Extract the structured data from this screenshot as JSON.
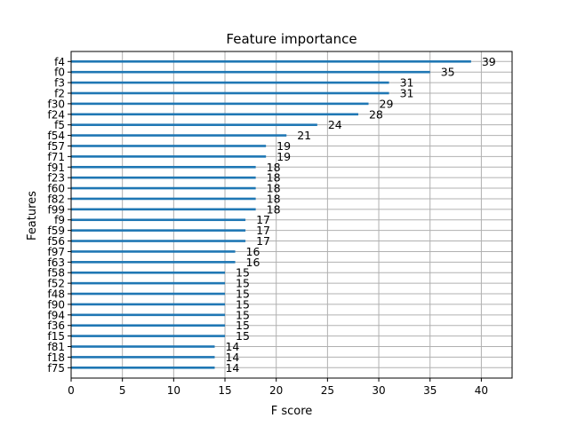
{
  "chart_data": {
    "type": "bar",
    "orientation": "horizontal",
    "title": "Feature importance",
    "xlabel": "F score",
    "ylabel": "Features",
    "xlim": [
      0,
      43
    ],
    "xticks": [
      0,
      5,
      10,
      15,
      20,
      25,
      30,
      35,
      40
    ],
    "grid": true,
    "bar_color": "#1f77b4",
    "categories": [
      "f4",
      "f0",
      "f3",
      "f2",
      "f30",
      "f24",
      "f5",
      "f54",
      "f57",
      "f71",
      "f91",
      "f23",
      "f60",
      "f82",
      "f99",
      "f9",
      "f59",
      "f56",
      "f97",
      "f63",
      "f58",
      "f52",
      "f48",
      "f90",
      "f94",
      "f36",
      "f15",
      "f81",
      "f18",
      "f75"
    ],
    "values": [
      39,
      35,
      31,
      31,
      29,
      28,
      24,
      21,
      19,
      19,
      18,
      18,
      18,
      18,
      18,
      17,
      17,
      17,
      16,
      16,
      15,
      15,
      15,
      15,
      15,
      15,
      15,
      14,
      14,
      14
    ]
  }
}
